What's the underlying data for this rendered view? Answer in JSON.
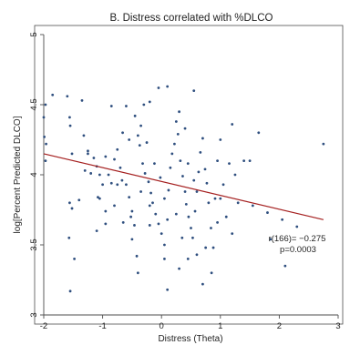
{
  "chart_data": {
    "type": "scatter",
    "title": "B. Distress correlated with %DLCO",
    "xlabel": "Distress (Theta)",
    "ylabel": "log[Percent Predicted DLCO]",
    "xlim": [
      -2,
      3
    ],
    "ylim": [
      3,
      5
    ],
    "xticks": [
      -2,
      -1,
      0,
      1,
      2,
      3
    ],
    "yticks": [
      3,
      3.5,
      4,
      4.5,
      5
    ],
    "xtick_labels": [
      "-2",
      "-1",
      "0",
      "1",
      "2",
      "3"
    ],
    "ytick_labels": [
      "3",
      "3.5",
      "4",
      "4.5",
      "5"
    ],
    "grid": false,
    "colors": {
      "points": "#2f4f7f",
      "fit_line": "#a52020",
      "frame": "#4d4d4d"
    },
    "points": [
      [
        -1.85,
        4.57
      ],
      [
        -1.97,
        4.5
      ],
      [
        -2.0,
        4.41
      ],
      [
        -1.99,
        4.27
      ],
      [
        -1.96,
        4.22
      ],
      [
        -1.97,
        4.1
      ],
      [
        -1.6,
        4.56
      ],
      [
        -1.56,
        4.41
      ],
      [
        -1.55,
        4.35
      ],
      [
        -1.52,
        4.15
      ],
      [
        -1.56,
        3.8
      ],
      [
        -1.52,
        3.76
      ],
      [
        -1.57,
        3.55
      ],
      [
        -1.48,
        3.4
      ],
      [
        -1.55,
        3.17
      ],
      [
        -1.35,
        4.53
      ],
      [
        -1.32,
        4.28
      ],
      [
        -1.25,
        4.15
      ],
      [
        -1.15,
        4.12
      ],
      [
        -1.1,
        4.06
      ],
      [
        -1.05,
        4.0
      ],
      [
        -1.0,
        3.93
      ],
      [
        -1.08,
        3.84
      ],
      [
        -0.95,
        3.74
      ],
      [
        -0.95,
        3.65
      ],
      [
        -0.85,
        3.94
      ],
      [
        -0.8,
        4.11
      ],
      [
        -0.75,
        4.18
      ],
      [
        -0.7,
        4.05
      ],
      [
        -0.67,
        3.96
      ],
      [
        -0.6,
        3.93
      ],
      [
        -0.55,
        3.84
      ],
      [
        -0.5,
        3.74
      ],
      [
        -0.46,
        3.64
      ],
      [
        -0.52,
        3.7
      ],
      [
        -0.66,
        4.3
      ],
      [
        -0.6,
        4.49
      ],
      [
        -0.45,
        4.42
      ],
      [
        -0.4,
        4.28
      ],
      [
        -0.37,
        4.21
      ],
      [
        -0.32,
        4.08
      ],
      [
        -0.28,
        4.01
      ],
      [
        -0.22,
        3.95
      ],
      [
        -0.18,
        3.87
      ],
      [
        -0.15,
        3.8
      ],
      [
        -0.1,
        3.72
      ],
      [
        -0.05,
        3.65
      ],
      [
        0.0,
        3.58
      ],
      [
        0.05,
        3.5
      ],
      [
        0.1,
        3.68
      ],
      [
        0.12,
        3.89
      ],
      [
        0.15,
        4.05
      ],
      [
        0.18,
        4.15
      ],
      [
        0.22,
        4.22
      ],
      [
        0.25,
        4.38
      ],
      [
        0.28,
        4.29
      ],
      [
        0.32,
        4.1
      ],
      [
        0.36,
        3.99
      ],
      [
        0.4,
        3.88
      ],
      [
        0.42,
        3.79
      ],
      [
        0.46,
        3.7
      ],
      [
        0.5,
        3.62
      ],
      [
        0.53,
        3.55
      ],
      [
        0.57,
        3.74
      ],
      [
        0.6,
        3.88
      ],
      [
        0.63,
        4.02
      ],
      [
        0.66,
        4.16
      ],
      [
        0.7,
        4.26
      ],
      [
        0.74,
        4.04
      ],
      [
        0.77,
        3.94
      ],
      [
        0.8,
        3.8
      ],
      [
        0.84,
        3.62
      ],
      [
        0.88,
        3.48
      ],
      [
        0.91,
        3.83
      ],
      [
        0.95,
        4.1
      ],
      [
        1.0,
        4.25
      ],
      [
        1.05,
        3.93
      ],
      [
        1.1,
        3.7
      ],
      [
        1.15,
        4.08
      ],
      [
        1.2,
        4.36
      ],
      [
        1.25,
        4.0
      ],
      [
        1.3,
        3.8
      ],
      [
        1.4,
        4.1
      ],
      [
        1.5,
        4.1
      ],
      [
        1.55,
        3.78
      ],
      [
        1.65,
        4.3
      ],
      [
        1.8,
        3.73
      ],
      [
        1.85,
        3.54
      ],
      [
        2.05,
        3.68
      ],
      [
        2.1,
        3.35
      ],
      [
        2.3,
        3.63
      ],
      [
        2.75,
        4.22
      ],
      [
        -0.05,
        4.62
      ],
      [
        0.1,
        4.63
      ],
      [
        0.55,
        4.6
      ],
      [
        -0.2,
        4.52
      ],
      [
        -0.3,
        4.5
      ],
      [
        -0.35,
        4.35
      ],
      [
        -0.85,
        4.49
      ],
      [
        -1.25,
        4.17
      ],
      [
        -1.05,
        3.83
      ],
      [
        -0.42,
        3.42
      ],
      [
        -0.4,
        3.3
      ],
      [
        -0.2,
        3.64
      ],
      [
        0.05,
        3.4
      ],
      [
        0.1,
        3.18
      ],
      [
        0.3,
        3.33
      ],
      [
        0.45,
        3.4
      ],
      [
        0.7,
        3.22
      ],
      [
        0.75,
        3.48
      ],
      [
        0.85,
        3.3
      ],
      [
        1.2,
        3.58
      ],
      [
        -0.75,
        3.93
      ],
      [
        -0.95,
        4.13
      ],
      [
        -0.12,
        4.08
      ],
      [
        -0.02,
        3.98
      ],
      [
        0.45,
        4.08
      ],
      [
        0.55,
        3.96
      ],
      [
        0.35,
        3.55
      ],
      [
        0.25,
        3.72
      ],
      [
        0.05,
        3.83
      ],
      [
        -0.2,
        3.78
      ],
      [
        -0.5,
        3.54
      ],
      [
        -0.65,
        3.66
      ],
      [
        -0.8,
        3.78
      ],
      [
        -1.1,
        3.6
      ],
      [
        -0.35,
        3.88
      ],
      [
        -0.25,
        4.23
      ],
      [
        0.4,
        4.33
      ],
      [
        0.3,
        4.45
      ],
      [
        1.0,
        3.83
      ],
      [
        0.95,
        3.66
      ],
      [
        -0.55,
        4.25
      ],
      [
        -0.9,
        4.0
      ],
      [
        -1.2,
        4.01
      ],
      [
        -1.4,
        3.82
      ],
      [
        -1.3,
        4.03
      ],
      [
        0.6,
        3.43
      ]
    ],
    "regression": {
      "x": [
        -2,
        2.75
      ],
      "y": [
        4.15,
        3.68
      ]
    },
    "annotation": {
      "r_text": "r(166)= −0.275",
      "p_text": "p=0.0003"
    }
  }
}
